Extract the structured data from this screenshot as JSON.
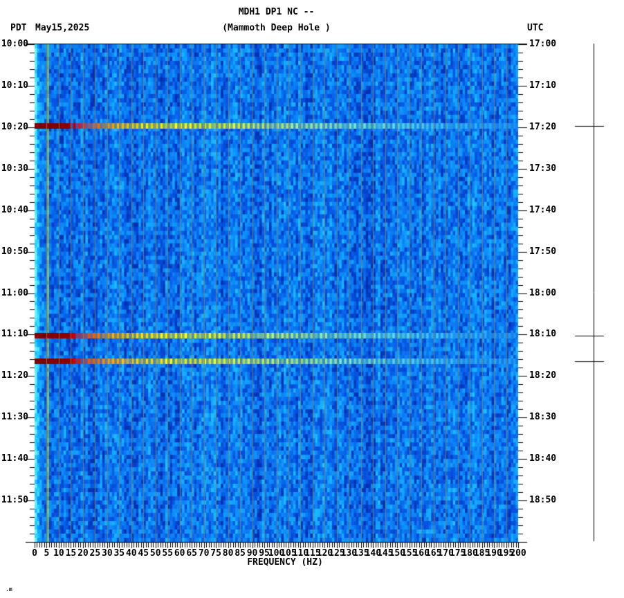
{
  "header": {
    "title_line1": "MDH1 DP1 NC --",
    "title_line2": "(Mammoth Deep Hole )",
    "tz_left": "PDT",
    "date": "May15,2025",
    "tz_right": "UTC"
  },
  "footer": {
    "mark": ".m"
  },
  "chart_data": {
    "type": "heatmap",
    "subtype": "seismic-spectrogram",
    "station": "MDH1 DP1 NC --",
    "station_name": "Mammoth Deep Hole",
    "xlabel": "FREQUENCY (HZ)",
    "x_range_hz": [
      0,
      200
    ],
    "x_major_tick_step_hz": 5,
    "x_minor_tick_step_hz": 1,
    "x_tick_labels": [
      "0",
      "5",
      "10",
      "15",
      "20",
      "25",
      "30",
      "35",
      "40",
      "45",
      "50",
      "55",
      "60",
      "65",
      "70",
      "75",
      "80",
      "85",
      "90",
      "95",
      "100",
      "105",
      "110",
      "115",
      "120",
      "125",
      "130",
      "135",
      "140",
      "145",
      "150",
      "155",
      "160",
      "165",
      "170",
      "175",
      "180",
      "185",
      "190",
      "195",
      "200"
    ],
    "y_left_timezone": "PDT",
    "y_right_timezone": "UTC",
    "y_time_range_pdt": [
      "10:00",
      "12:00"
    ],
    "y_major_tick_step_min": 10,
    "y_minor_tick_step_min": 2,
    "left_tick_labels": [
      "10:00",
      "10:10",
      "10:20",
      "10:30",
      "10:40",
      "10:50",
      "11:00",
      "11:10",
      "11:20",
      "11:30",
      "11:40",
      "11:50"
    ],
    "right_tick_labels": [
      "17:00",
      "17:10",
      "17:20",
      "17:30",
      "17:40",
      "17:50",
      "18:00",
      "18:10",
      "18:20",
      "18:30",
      "18:40",
      "18:50"
    ],
    "grid": {
      "vertical_every_hz": 5,
      "color": "rgba(125,125,104,0.9)"
    },
    "persistent_features": [
      {
        "name": "low-frequency-noise-column",
        "hz_range": [
          0,
          2
        ],
        "color": "#2fdcf8"
      },
      {
        "name": "narrowband-tone-line",
        "hz": 5,
        "color": "#b4e432"
      }
    ],
    "events": [
      {
        "name": "event-band-1",
        "time_pdt": "10:20",
        "time_utc": "17:20",
        "start_min": 19.7,
        "saturated_to_hz": 15
      },
      {
        "name": "event-band-2",
        "time_pdt": "11:10",
        "time_utc": "18:10",
        "start_min": 70.3,
        "saturated_to_hz": 16
      },
      {
        "name": "event-band-3",
        "time_pdt": "11:16",
        "time_utc": "18:16",
        "start_min": 76.5,
        "saturated_to_hz": 17
      }
    ],
    "event_color_stops": [
      {
        "hz": 0,
        "color": "#7a0000"
      },
      {
        "hz": 14,
        "color": "#8e0000"
      },
      {
        "hz": 17,
        "color": "#d40000"
      },
      {
        "hz": 23,
        "color": "#ff5400"
      },
      {
        "hz": 31,
        "color": "#ffa000"
      },
      {
        "hz": 42,
        "color": "#ffd800"
      },
      {
        "hz": 55,
        "color": "#f6f000"
      },
      {
        "hz": 75,
        "color": "#dcee28"
      },
      {
        "hz": 100,
        "color": "#aee670"
      },
      {
        "hz": 130,
        "color": "#72dec0"
      },
      {
        "hz": 165,
        "color": "#48d2ee"
      },
      {
        "hz": 200,
        "color": "#30b8f6"
      }
    ],
    "noise_palette": [
      "#0230b0",
      "#0550e0",
      "#0a74f0",
      "#0e93fa",
      "#18b6ff",
      "#2fdcff",
      "#6cf2ff"
    ],
    "right_event_marker": {
      "present": true,
      "tick_times_utc": [
        "17:20",
        "18:10",
        "18:16"
      ]
    }
  }
}
